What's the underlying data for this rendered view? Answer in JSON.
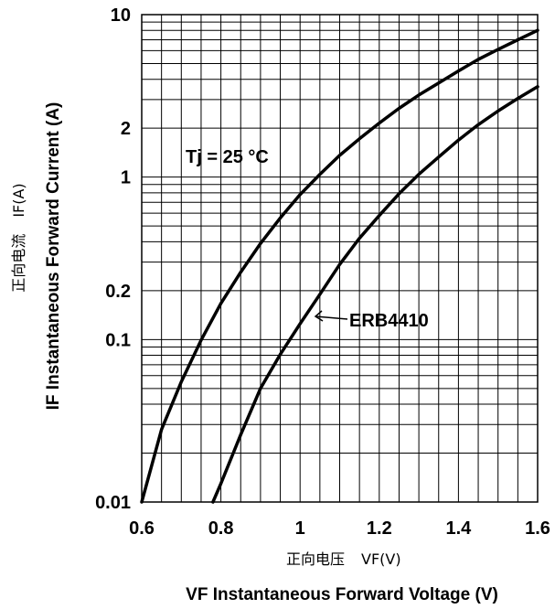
{
  "chart_data": {
    "type": "line",
    "x_scale": "linear",
    "y_scale": "log",
    "xlim": [
      0.6,
      1.6
    ],
    "ylim": [
      0.01,
      10
    ],
    "x_ticks": [
      0.6,
      0.8,
      1.0,
      1.2,
      1.4,
      1.6
    ],
    "x_tick_labels": [
      "0.6",
      "0.8",
      "1",
      "1.2",
      "1.4",
      "1.6"
    ],
    "y_tick_labels": [
      {
        "value": 10,
        "label": "10"
      },
      {
        "value": 2,
        "label": "2"
      },
      {
        "value": 1,
        "label": "1"
      },
      {
        "value": 0.2,
        "label": "0.2"
      },
      {
        "value": 0.1,
        "label": "0.1"
      },
      {
        "value": 0.01,
        "label": "0.01"
      }
    ],
    "grid": true,
    "xlabel_cn": "正向电压",
    "xlabel_symbol": "VF(V)",
    "xlabel": "VF Instantaneous Forward Voltage (V)",
    "ylabel_cn": "正向电流",
    "ylabel_symbol": "IF(A)",
    "ylabel": "IF Instantaneous Forward Current (A)",
    "annotations": [
      "Tj = 25 °C",
      "ERB4410"
    ],
    "series": [
      {
        "x": [
          0.6,
          0.65,
          0.7,
          0.75,
          0.8,
          0.85,
          0.9,
          0.95,
          1.0,
          1.05,
          1.1,
          1.15,
          1.2,
          1.25,
          1.3,
          1.35,
          1.4,
          1.45,
          1.5,
          1.55,
          1.6
        ],
        "y": [
          0.01,
          0.028,
          0.055,
          0.099,
          0.167,
          0.26,
          0.39,
          0.56,
          0.78,
          1.04,
          1.36,
          1.72,
          2.15,
          2.65,
          3.2,
          3.8,
          4.5,
          5.3,
          6.1,
          7.0,
          8.0
        ]
      },
      {
        "x": [
          0.78,
          0.8,
          0.85,
          0.9,
          0.95,
          1.0,
          1.05,
          1.1,
          1.15,
          1.2,
          1.25,
          1.3,
          1.35,
          1.4,
          1.45,
          1.5,
          1.55,
          1.6
        ],
        "y": [
          0.01,
          0.013,
          0.026,
          0.05,
          0.081,
          0.125,
          0.19,
          0.29,
          0.42,
          0.58,
          0.79,
          1.04,
          1.33,
          1.69,
          2.1,
          2.55,
          3.05,
          3.6
        ]
      }
    ]
  }
}
